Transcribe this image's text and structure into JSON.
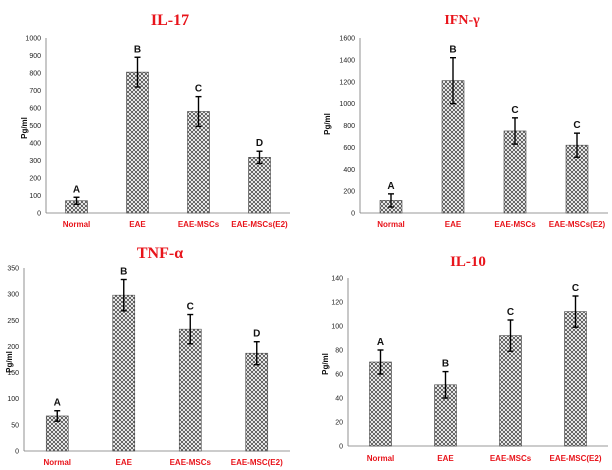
{
  "chart_data": [
    {
      "type": "bar",
      "title": "IL-17",
      "ylabel": "Pg/ml",
      "categories": [
        "Normal",
        "EAE",
        "EAE-MSCs",
        "EAE-MSCs(E2)"
      ],
      "values": [
        70,
        805,
        580,
        318
      ],
      "errors": [
        20,
        85,
        85,
        35
      ],
      "sig_labels": [
        "A",
        "B",
        "C",
        "D"
      ],
      "ylim": [
        0,
        1000
      ],
      "yticks": [
        "0",
        "100",
        "200",
        "300",
        "400",
        "500",
        "600",
        "700",
        "800",
        "900",
        "1000"
      ],
      "grid": false
    },
    {
      "type": "bar",
      "title": "IFN-γ",
      "ylabel": "Pg/ml",
      "categories": [
        "Normal",
        "EAE",
        "EAE-MSCs",
        "EAE-MSCs(E2)"
      ],
      "values": [
        115,
        1210,
        750,
        620
      ],
      "errors": [
        60,
        210,
        120,
        110
      ],
      "sig_labels": [
        "A",
        "B",
        "C",
        "C"
      ],
      "ylim": [
        0,
        1600
      ],
      "yticks": [
        "0",
        "200",
        "400",
        "600",
        "800",
        "1000",
        "1200",
        "1400",
        "1600"
      ],
      "grid": false
    },
    {
      "type": "bar",
      "title": "TNF-α",
      "ylabel": "Pg/ml",
      "categories": [
        "Normal",
        "EAE",
        "EAE-MSCs",
        "EAE-MSC(E2)"
      ],
      "values": [
        67,
        298,
        233,
        187
      ],
      "errors": [
        10,
        30,
        28,
        22
      ],
      "sig_labels": [
        "A",
        "B",
        "C",
        "D"
      ],
      "ylim": [
        0,
        350
      ],
      "yticks": [
        "0",
        "50",
        "100",
        "150",
        "200",
        "250",
        "300",
        "350"
      ],
      "grid": false
    },
    {
      "type": "bar",
      "title": "IL-10",
      "ylabel": "Pg/ml",
      "categories": [
        "Normal",
        "EAE",
        "EAE-MSCs",
        "EAE-MSC(E2)"
      ],
      "values": [
        70,
        51,
        92,
        112
      ],
      "errors": [
        10,
        11,
        13,
        13
      ],
      "sig_labels": [
        "A",
        "B",
        "C",
        "C"
      ],
      "ylim": [
        0,
        140
      ],
      "yticks": [
        "0",
        "20",
        "40",
        "60",
        "80",
        "100",
        "120",
        "140"
      ],
      "grid": false
    }
  ]
}
